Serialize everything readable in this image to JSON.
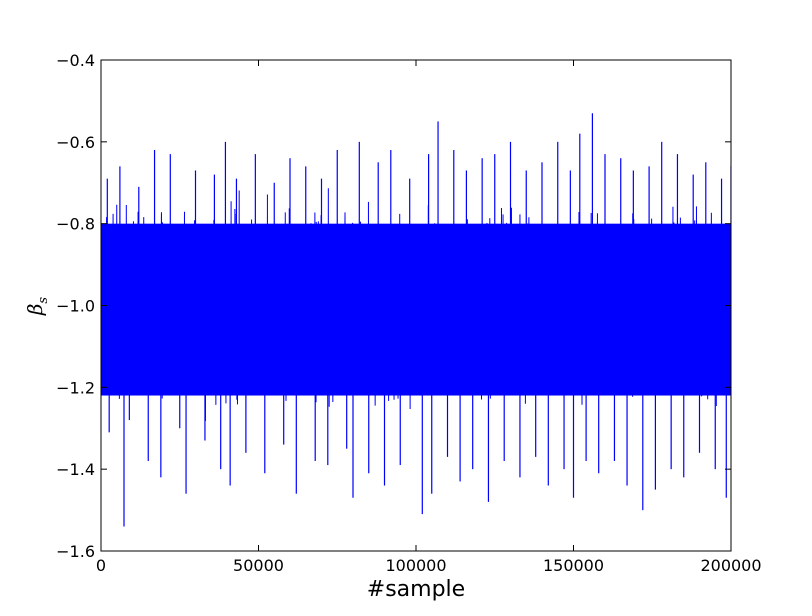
{
  "chart_data": {
    "type": "line",
    "title": "",
    "xlabel": "#sample",
    "ylabel": "β",
    "ylabel_subscript": "s",
    "xlim": [
      0,
      200000
    ],
    "ylim": [
      -1.6,
      -0.4
    ],
    "xticks": [
      0,
      50000,
      100000,
      150000,
      200000
    ],
    "xtick_labels": [
      "0",
      "50000",
      "100000",
      "150000",
      "200000"
    ],
    "yticks": [
      -1.6,
      -1.4,
      -1.2,
      -1.0,
      -0.8,
      -0.6,
      -0.4
    ],
    "ytick_labels": [
      "−1.6",
      "−1.4",
      "−1.2",
      "−1.0",
      "−0.8",
      "−0.6",
      "−0.4"
    ],
    "grid": false,
    "series": [
      {
        "color": "#0000ff",
        "description_stats": {
          "mean": -1.0,
          "std": 0.12,
          "n": 200000
        },
        "points": [
          [
            0,
            -0.98
          ],
          [
            2000,
            -0.69
          ],
          [
            2600,
            -1.31
          ],
          [
            6000,
            -0.66
          ],
          [
            7300,
            -1.54
          ],
          [
            9000,
            -1.28
          ],
          [
            12000,
            -0.71
          ],
          [
            15000,
            -1.38
          ],
          [
            17000,
            -0.62
          ],
          [
            19000,
            -1.42
          ],
          [
            22000,
            -0.63
          ],
          [
            25000,
            -1.3
          ],
          [
            27000,
            -1.46
          ],
          [
            30000,
            -0.67
          ],
          [
            33000,
            -1.33
          ],
          [
            36000,
            -0.68
          ],
          [
            38000,
            -1.4
          ],
          [
            39500,
            -0.6
          ],
          [
            41000,
            -1.44
          ],
          [
            43000,
            -0.69
          ],
          [
            46000,
            -1.36
          ],
          [
            49000,
            -0.63
          ],
          [
            52000,
            -1.41
          ],
          [
            55000,
            -0.7
          ],
          [
            58000,
            -1.34
          ],
          [
            60000,
            -0.64
          ],
          [
            62000,
            -1.46
          ],
          [
            65000,
            -0.66
          ],
          [
            68000,
            -1.38
          ],
          [
            70000,
            -0.69
          ],
          [
            72000,
            -1.39
          ],
          [
            75000,
            -0.62
          ],
          [
            78000,
            -1.35
          ],
          [
            80000,
            -1.47
          ],
          [
            82000,
            -0.6
          ],
          [
            85000,
            -1.41
          ],
          [
            88000,
            -0.65
          ],
          [
            90000,
            -1.44
          ],
          [
            92000,
            -0.62
          ],
          [
            95000,
            -1.39
          ],
          [
            98000,
            -0.69
          ],
          [
            102000,
            -1.51
          ],
          [
            104000,
            -0.63
          ],
          [
            105000,
            -1.46
          ],
          [
            107000,
            -0.55
          ],
          [
            110000,
            -1.37
          ],
          [
            112000,
            -0.62
          ],
          [
            114000,
            -1.43
          ],
          [
            116000,
            -0.67
          ],
          [
            118000,
            -1.4
          ],
          [
            121000,
            -0.64
          ],
          [
            123000,
            -1.48
          ],
          [
            125000,
            -0.63
          ],
          [
            128000,
            -1.38
          ],
          [
            130000,
            -0.6
          ],
          [
            133000,
            -1.42
          ],
          [
            135000,
            -0.67
          ],
          [
            138000,
            -1.37
          ],
          [
            140000,
            -0.65
          ],
          [
            142000,
            -1.44
          ],
          [
            145000,
            -0.6
          ],
          [
            147000,
            -1.4
          ],
          [
            149000,
            -0.67
          ],
          [
            150000,
            -1.47
          ],
          [
            152000,
            -0.58
          ],
          [
            154000,
            -1.38
          ],
          [
            156000,
            -0.53
          ],
          [
            158000,
            -1.41
          ],
          [
            160000,
            -0.63
          ],
          [
            163000,
            -1.38
          ],
          [
            165000,
            -0.64
          ],
          [
            167000,
            -1.44
          ],
          [
            169000,
            -0.67
          ],
          [
            172000,
            -1.5
          ],
          [
            174000,
            -0.66
          ],
          [
            176000,
            -1.45
          ],
          [
            178000,
            -0.6
          ],
          [
            181000,
            -1.4
          ],
          [
            183000,
            -0.63
          ],
          [
            185000,
            -1.42
          ],
          [
            188000,
            -0.68
          ],
          [
            190000,
            -1.36
          ],
          [
            192000,
            -0.65
          ],
          [
            195000,
            -1.4
          ],
          [
            197000,
            -0.69
          ],
          [
            198500,
            -1.47
          ],
          [
            200000,
            -0.66
          ]
        ]
      }
    ]
  }
}
